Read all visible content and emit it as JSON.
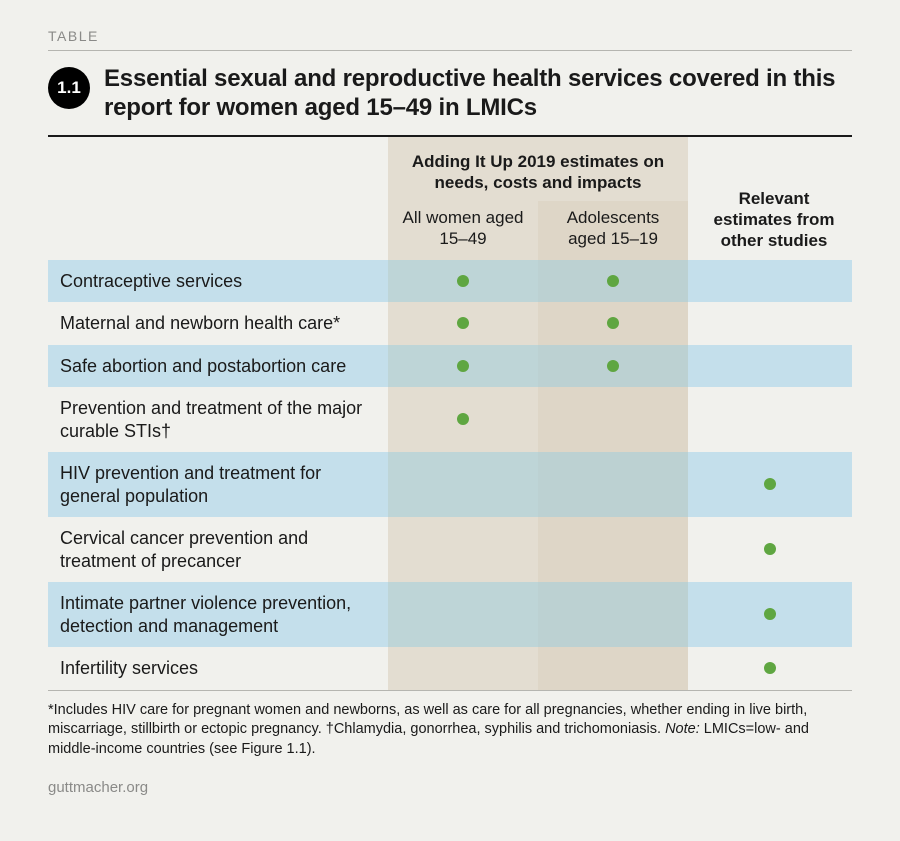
{
  "kicker": "TABLE",
  "badge": "1.1",
  "title": "Essential sexual and reproductive health services covered in this report for women aged 15–49 in LMICs",
  "columns": {
    "group_header": "Adding It Up 2019 estimates on needs, costs and impacts",
    "sub_a": "All women aged 15–49",
    "sub_b": "Adolescents aged 15–19",
    "col_c": "Relevant estimates from other studies"
  },
  "rows": [
    {
      "label": "Contraceptive services",
      "a": true,
      "b": true,
      "c": false,
      "band": "blue"
    },
    {
      "label": "Maternal and newborn health care*",
      "a": true,
      "b": true,
      "c": false,
      "band": "plain"
    },
    {
      "label": "Safe abortion and postabortion care",
      "a": true,
      "b": true,
      "c": false,
      "band": "blue"
    },
    {
      "label": "Prevention and treatment of the major curable STIs†",
      "a": true,
      "b": false,
      "c": false,
      "band": "plain"
    },
    {
      "label": "HIV prevention and treatment for general population",
      "a": false,
      "b": false,
      "c": true,
      "band": "blue"
    },
    {
      "label": "Cervical cancer prevention and treatment of precancer",
      "a": false,
      "b": false,
      "c": true,
      "band": "plain"
    },
    {
      "label": "Intimate partner violence prevention, detection and management",
      "a": false,
      "b": false,
      "c": true,
      "band": "blue"
    },
    {
      "label": "Infertility services",
      "a": false,
      "b": false,
      "c": true,
      "band": "plain"
    }
  ],
  "footnote_parts": {
    "p1": "*Includes HIV care for pregnant women and newborns, as well as care for all pregnancies, whether ending in live birth, miscarriage, stillbirth or ectopic pregnancy. †Chlamydia, gonorrhea, syphilis and trichomoniasis. ",
    "note_label": "Note:",
    "p2": " LMICs=low- and middle-income countries (see Figure 1.1)."
  },
  "source": "guttmacher.org",
  "style": {
    "dot_color": "#5fa641",
    "band_blue": "#c4dfeb",
    "shade_a": "#e3ddd1",
    "shade_b": "#ded6c7",
    "blend_a": "#bed5d7",
    "blend_b": "#bcd1d2",
    "page_bg": "#f1f1ed",
    "rule_light": "#b5b5b0",
    "rule_dark": "#1a1a1a",
    "text": "#1a1a1a",
    "muted": "#8a8a88",
    "title_fontsize": 24,
    "body_fontsize": 18,
    "header_fontsize": 17,
    "footnote_fontsize": 14.5,
    "dot_size": 12
  }
}
